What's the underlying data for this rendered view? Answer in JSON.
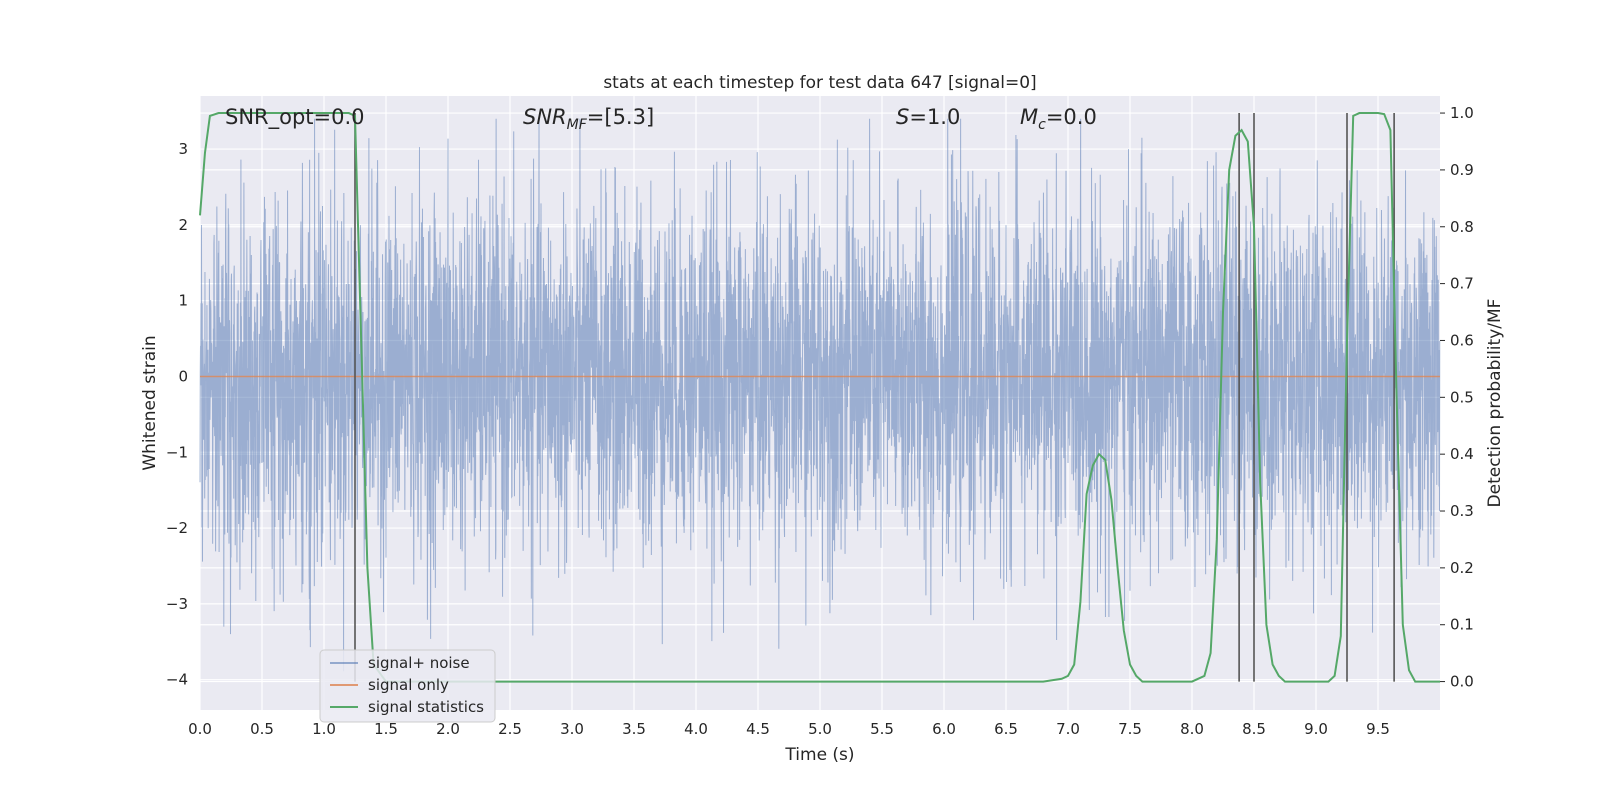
{
  "chart_data": {
    "type": "line",
    "title": "stats at each timestep for test data 647 [signal=0]",
    "xlabel": "Time (s)",
    "ylabel_left": "Whitened strain",
    "ylabel_right": "Detection probability/MF",
    "xlim": [
      0.0,
      10.0
    ],
    "ylim_left": [
      -4.4,
      3.7
    ],
    "ylim_right": [
      -0.05,
      1.03
    ],
    "xticks": [
      0.0,
      0.5,
      1.0,
      1.5,
      2.0,
      2.5,
      3.0,
      3.5,
      4.0,
      4.5,
      5.0,
      5.5,
      6.0,
      6.5,
      7.0,
      7.5,
      8.0,
      8.5,
      9.0,
      9.5
    ],
    "xtick_labels": [
      "0.0",
      "0.5",
      "1.0",
      "1.5",
      "2.0",
      "2.5",
      "3.0",
      "3.5",
      "4.0",
      "4.5",
      "5.0",
      "5.5",
      "6.0",
      "6.5",
      "7.0",
      "7.5",
      "8.0",
      "8.5",
      "9.0",
      "9.5"
    ],
    "yticks_left": [
      3,
      2,
      1,
      0,
      -1,
      -2,
      -3,
      -4
    ],
    "ytick_labels_left": [
      "3",
      "2",
      "1",
      "0",
      "−1",
      "−2",
      "−3",
      "−4"
    ],
    "yticks_right": [
      1.0,
      0.9,
      0.8,
      0.7,
      0.6,
      0.5,
      0.4,
      0.3,
      0.2,
      0.1,
      0.0
    ],
    "ytick_labels_right": [
      "1.0",
      "0.9",
      "0.8",
      "0.7",
      "0.6",
      "0.5",
      "0.4",
      "0.3",
      "0.2",
      "0.1",
      "0.0"
    ],
    "grid": true,
    "legend_position": "lower-left",
    "annotations": {
      "snr_opt": "SNR_opt=0.0",
      "snr_mf_label": "SNR",
      "snr_mf_sub": "MF",
      "snr_mf_value": "=[5.3]",
      "s_label": "S",
      "s_value": "=1.0",
      "mc_label": "M",
      "mc_sub": "c",
      "mc_value": "=0.0"
    },
    "series": [
      {
        "name": "signal+ noise",
        "axis": "left",
        "color": "#4c72b0",
        "note_summary": "dense white-noise strain, approx. range -4.0 to 3.4"
      },
      {
        "name": "signal only",
        "axis": "left",
        "color": "#dd8452",
        "x": [
          0.0,
          10.0
        ],
        "y": [
          0.0,
          0.0
        ]
      },
      {
        "name": "signal statistics",
        "axis": "right",
        "color": "#55a868",
        "x": [
          0.0,
          0.04,
          0.08,
          0.15,
          0.5,
          1.0,
          1.2,
          1.25,
          1.3,
          1.35,
          1.4,
          1.5,
          2.0,
          3.0,
          4.0,
          5.0,
          6.0,
          6.8,
          6.95,
          7.0,
          7.05,
          7.1,
          7.15,
          7.2,
          7.25,
          7.3,
          7.35,
          7.4,
          7.45,
          7.5,
          7.55,
          7.6,
          7.7,
          8.0,
          8.1,
          8.15,
          8.2,
          8.25,
          8.3,
          8.35,
          8.4,
          8.45,
          8.5,
          8.55,
          8.6,
          8.65,
          8.7,
          8.75,
          8.8,
          8.9,
          9.0,
          9.1,
          9.15,
          9.2,
          9.25,
          9.3,
          9.35,
          9.4,
          9.45,
          9.5,
          9.55,
          9.6,
          9.65,
          9.7,
          9.75,
          9.8,
          9.85,
          9.9,
          10.0
        ],
        "y": [
          0.82,
          0.93,
          0.995,
          1.0,
          1.0,
          1.0,
          1.0,
          0.995,
          0.6,
          0.2,
          0.03,
          0.0,
          0.0,
          0.0,
          0.0,
          0.0,
          0.0,
          0.0,
          0.005,
          0.01,
          0.03,
          0.14,
          0.33,
          0.38,
          0.4,
          0.39,
          0.32,
          0.2,
          0.09,
          0.03,
          0.01,
          0.0,
          0.0,
          0.0,
          0.01,
          0.05,
          0.25,
          0.65,
          0.9,
          0.96,
          0.97,
          0.95,
          0.8,
          0.35,
          0.1,
          0.03,
          0.01,
          0.0,
          0.0,
          0.0,
          0.0,
          0.0,
          0.01,
          0.08,
          0.6,
          0.995,
          1.0,
          1.0,
          1.0,
          1.0,
          0.998,
          0.97,
          0.5,
          0.1,
          0.02,
          0.0,
          0.0,
          0.0,
          0.0
        ]
      }
    ],
    "event_lines_x": [
      1.25,
      8.38,
      8.5,
      9.25,
      9.63
    ],
    "colors": {
      "plot_background": "#eaeaf2",
      "grid": "#ffffff",
      "event_line": "#555555"
    }
  }
}
